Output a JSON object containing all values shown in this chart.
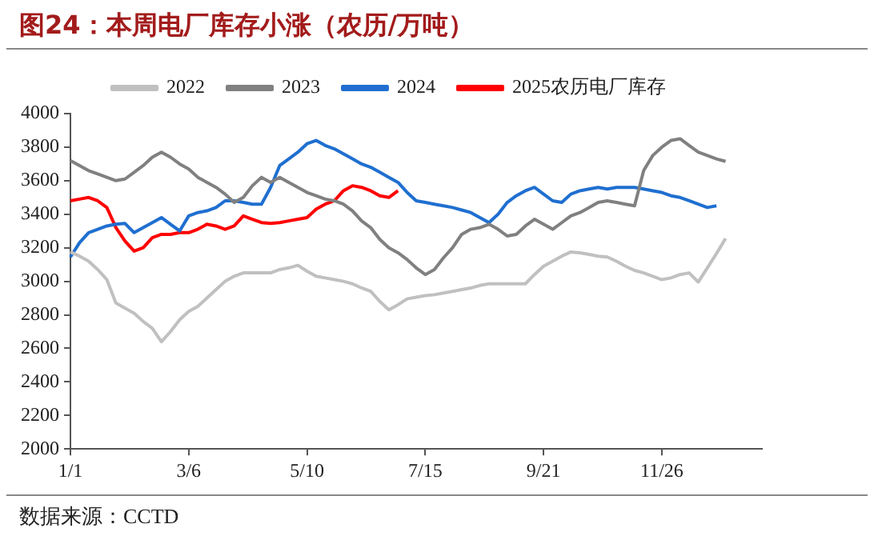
{
  "chart_data": {
    "type": "line",
    "title": "图24：本周电厂库存小涨（农历/万吨）",
    "annotations": [
      "数据来源：CCTD"
    ],
    "categories": [
      "1/1",
      null,
      null,
      null,
      null,
      null,
      null,
      null,
      null,
      null,
      null,
      null,
      null,
      "3/6",
      null,
      null,
      null,
      null,
      null,
      null,
      null,
      null,
      null,
      null,
      null,
      null,
      "5/10",
      null,
      null,
      null,
      null,
      null,
      null,
      null,
      null,
      null,
      null,
      null,
      null,
      "7/15",
      null,
      null,
      null,
      null,
      null,
      null,
      null,
      null,
      null,
      null,
      null,
      null,
      "9/21",
      null,
      null,
      null,
      null,
      null,
      null,
      null,
      null,
      null,
      null,
      null,
      null,
      "11/26",
      null,
      null,
      null,
      null,
      null,
      null,
      null,
      null,
      null,
      null,
      null
    ],
    "series": [
      {
        "name": "2022",
        "color": "#c0c0c0",
        "values": [
          3175,
          3150,
          3120,
          3070,
          3010,
          2870,
          2840,
          2810,
          2760,
          2720,
          2640,
          2700,
          2770,
          2820,
          2850,
          2900,
          2950,
          3000,
          3030,
          3050,
          3050,
          3050,
          3050,
          3070,
          3080,
          3095,
          3060,
          3030,
          3020,
          3010,
          3000,
          2985,
          2960,
          2940,
          2880,
          2830,
          2860,
          2895,
          2905,
          2915,
          2920,
          2930,
          2940,
          2950,
          2960,
          2975,
          2985,
          2985,
          2985,
          2985,
          2985,
          3040,
          3090,
          3120,
          3150,
          3175,
          3170,
          3160,
          3150,
          3145,
          3120,
          3090,
          3065,
          3050,
          3030,
          3010,
          3020,
          3040,
          3050,
          2995,
          3080,
          3165,
          3255,
          null,
          null,
          null,
          null
        ]
      },
      {
        "name": "2023",
        "color": "#808080",
        "values": [
          3720,
          3690,
          3660,
          3640,
          3620,
          3600,
          3610,
          3650,
          3690,
          3740,
          3770,
          3740,
          3700,
          3670,
          3620,
          3590,
          3560,
          3520,
          3470,
          3500,
          3570,
          3620,
          3590,
          3620,
          3590,
          3560,
          3530,
          3510,
          3490,
          3480,
          3460,
          3420,
          3360,
          3320,
          3250,
          3200,
          3170,
          3130,
          3080,
          3040,
          3070,
          3140,
          3200,
          3280,
          3310,
          3320,
          3340,
          3310,
          3270,
          3280,
          3330,
          3370,
          3340,
          3310,
          3350,
          3390,
          3410,
          3440,
          3470,
          3480,
          3470,
          3460,
          3450,
          3660,
          3750,
          3800,
          3840,
          3850,
          3810,
          3770,
          3750,
          3730,
          3715,
          null,
          null,
          null,
          null
        ]
      },
      {
        "name": "2024",
        "color": "#1f6fd0",
        "values": [
          3145,
          3230,
          3290,
          3310,
          3330,
          3340,
          3345,
          3290,
          3320,
          3350,
          3380,
          3340,
          3300,
          3390,
          3410,
          3420,
          3440,
          3480,
          3480,
          3470,
          3460,
          3460,
          3560,
          3690,
          3730,
          3770,
          3820,
          3840,
          3810,
          3790,
          3760,
          3730,
          3700,
          3680,
          3650,
          3620,
          3590,
          3530,
          3480,
          3470,
          3460,
          3450,
          3440,
          3425,
          3410,
          3380,
          3350,
          3400,
          3470,
          3510,
          3540,
          3560,
          3520,
          3480,
          3470,
          3520,
          3540,
          3550,
          3560,
          3550,
          3560,
          3560,
          3560,
          3550,
          3540,
          3530,
          3510,
          3500,
          3480,
          3460,
          3440,
          3450,
          null,
          null,
          null,
          null,
          null
        ]
      },
      {
        "name": "2025农历电厂库存",
        "color": "#ff0000",
        "values": [
          3480,
          3490,
          3500,
          3480,
          3440,
          3320,
          3240,
          3180,
          3200,
          3260,
          3280,
          3280,
          3290,
          3290,
          3310,
          3340,
          3330,
          3310,
          3330,
          3390,
          3370,
          3350,
          3345,
          3350,
          3360,
          3370,
          3380,
          3430,
          3460,
          3480,
          3540,
          3570,
          3560,
          3540,
          3510,
          3500,
          3540,
          null,
          null,
          null,
          null,
          null,
          null,
          null,
          null,
          null,
          null,
          null,
          null,
          null,
          null,
          null,
          null,
          null,
          null,
          null,
          null,
          null,
          null,
          null,
          null,
          null,
          null,
          null,
          null,
          null,
          null,
          null,
          null,
          null,
          null,
          null,
          null,
          null,
          null,
          null,
          null
        ]
      }
    ],
    "ylim": [
      2000,
      4000
    ],
    "yticks": [
      2000,
      2200,
      2400,
      2600,
      2800,
      3000,
      3200,
      3400,
      3600,
      3800,
      4000
    ],
    "grid": false,
    "legend": "top",
    "marker": "none",
    "line_style": "solid"
  }
}
